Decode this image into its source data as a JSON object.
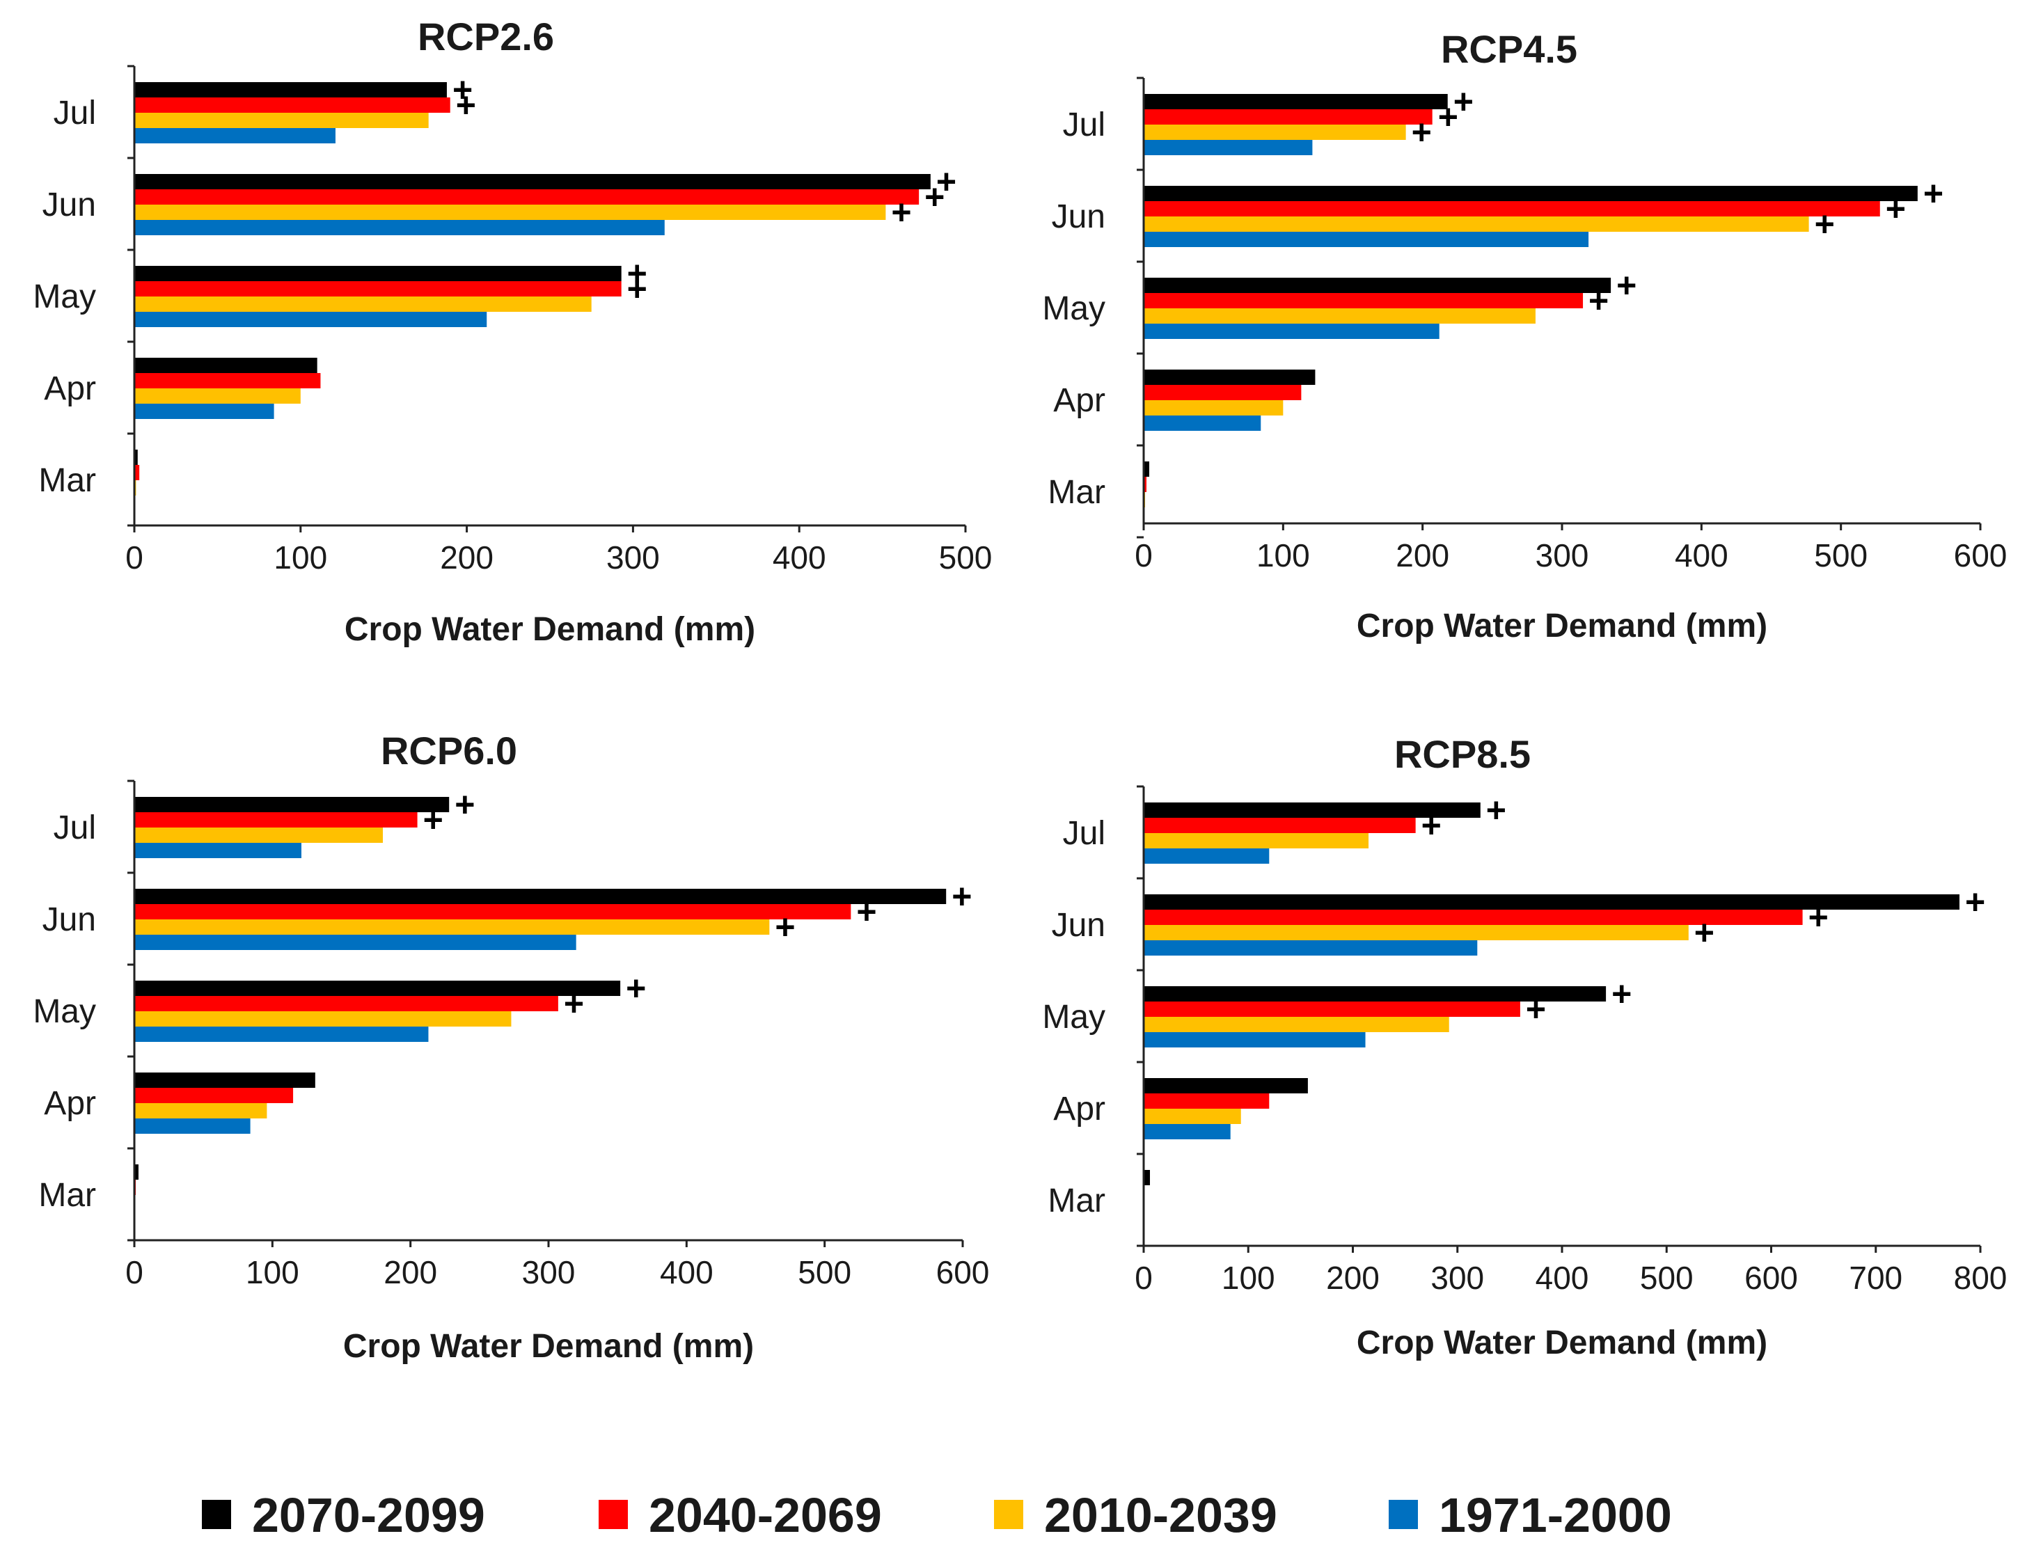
{
  "chart_data": [
    {
      "type": "bar",
      "orientation": "horizontal",
      "title": "RCP2.6",
      "xlabel": "Crop Water Demand (mm)",
      "ylabel": "",
      "xlim": [
        0,
        500
      ],
      "xticks": [
        0,
        100,
        200,
        300,
        400,
        500
      ],
      "categories": [
        "Jul",
        "Jun",
        "May",
        "Apr",
        "Mar"
      ],
      "series": [
        {
          "name": "2070-2099",
          "values": [
            188,
            479,
            293,
            110,
            2
          ],
          "significant": [
            true,
            true,
            true,
            false,
            false
          ]
        },
        {
          "name": "2040-2069",
          "values": [
            190,
            472,
            293,
            112,
            3
          ],
          "significant": [
            true,
            true,
            true,
            false,
            false
          ]
        },
        {
          "name": "2010-2039",
          "values": [
            177,
            452,
            275,
            100,
            1
          ],
          "significant": [
            false,
            true,
            false,
            false,
            false
          ]
        },
        {
          "name": "1971-2000",
          "values": [
            121,
            319,
            212,
            84,
            0
          ],
          "significant": [
            false,
            false,
            false,
            false,
            false
          ]
        }
      ]
    },
    {
      "type": "bar",
      "orientation": "horizontal",
      "title": "RCP4.5",
      "xlabel": "Crop Water Demand (mm)",
      "ylabel": "",
      "xlim": [
        0,
        600
      ],
      "xticks": [
        0,
        100,
        200,
        300,
        400,
        500,
        600
      ],
      "categories": [
        "Jul",
        "Jun",
        "May",
        "Apr",
        "Mar"
      ],
      "series": [
        {
          "name": "2070-2099",
          "values": [
            218,
            555,
            335,
            123,
            4
          ],
          "significant": [
            true,
            true,
            true,
            false,
            false
          ]
        },
        {
          "name": "2040-2069",
          "values": [
            207,
            528,
            315,
            113,
            2
          ],
          "significant": [
            true,
            true,
            true,
            false,
            false
          ]
        },
        {
          "name": "2010-2039",
          "values": [
            188,
            477,
            281,
            100,
            1
          ],
          "significant": [
            true,
            true,
            false,
            false,
            false
          ]
        },
        {
          "name": "1971-2000",
          "values": [
            121,
            319,
            212,
            84,
            0
          ],
          "significant": [
            false,
            false,
            false,
            false,
            false
          ]
        }
      ]
    },
    {
      "type": "bar",
      "orientation": "horizontal",
      "title": "RCP6.0",
      "xlabel": "Crop Water Demand (mm)",
      "ylabel": "",
      "xlim": [
        0,
        600
      ],
      "xticks": [
        0,
        100,
        200,
        300,
        400,
        500,
        600
      ],
      "categories": [
        "Jul",
        "Jun",
        "May",
        "Apr",
        "Mar"
      ],
      "series": [
        {
          "name": "2070-2099",
          "values": [
            228,
            588,
            352,
            131,
            3
          ],
          "significant": [
            true,
            true,
            true,
            false,
            false
          ]
        },
        {
          "name": "2040-2069",
          "values": [
            205,
            519,
            307,
            115,
            1
          ],
          "significant": [
            true,
            true,
            true,
            false,
            false
          ]
        },
        {
          "name": "2010-2039",
          "values": [
            180,
            460,
            273,
            96,
            0
          ],
          "significant": [
            false,
            true,
            false,
            false,
            false
          ]
        },
        {
          "name": "1971-2000",
          "values": [
            121,
            320,
            213,
            84,
            0
          ],
          "significant": [
            false,
            false,
            false,
            false,
            false
          ]
        }
      ]
    },
    {
      "type": "bar",
      "orientation": "horizontal",
      "title": "RCP8.5",
      "xlabel": "Crop Water Demand (mm)",
      "ylabel": "",
      "xlim": [
        0,
        800
      ],
      "xticks": [
        0,
        100,
        200,
        300,
        400,
        500,
        600,
        700,
        800
      ],
      "categories": [
        "Jul",
        "Jun",
        "May",
        "Apr",
        "Mar"
      ],
      "series": [
        {
          "name": "2070-2099",
          "values": [
            322,
            780,
            442,
            157,
            6
          ],
          "significant": [
            true,
            true,
            true,
            false,
            false
          ]
        },
        {
          "name": "2040-2069",
          "values": [
            260,
            630,
            360,
            120,
            1
          ],
          "significant": [
            true,
            true,
            true,
            false,
            false
          ]
        },
        {
          "name": "2010-2039",
          "values": [
            215,
            521,
            292,
            93,
            0
          ],
          "significant": [
            false,
            true,
            false,
            false,
            false
          ]
        },
        {
          "name": "1971-2000",
          "values": [
            120,
            319,
            212,
            83,
            0
          ],
          "significant": [
            false,
            false,
            false,
            false,
            false
          ]
        }
      ]
    }
  ],
  "legend": [
    {
      "label": "2070-2099",
      "color": "#000000"
    },
    {
      "label": "2040-2069",
      "color": "#ff0000"
    },
    {
      "label": "2010-2039",
      "color": "#ffc000"
    },
    {
      "label": "1971-2000",
      "color": "#0070c0"
    }
  ],
  "significance_marker": "+"
}
